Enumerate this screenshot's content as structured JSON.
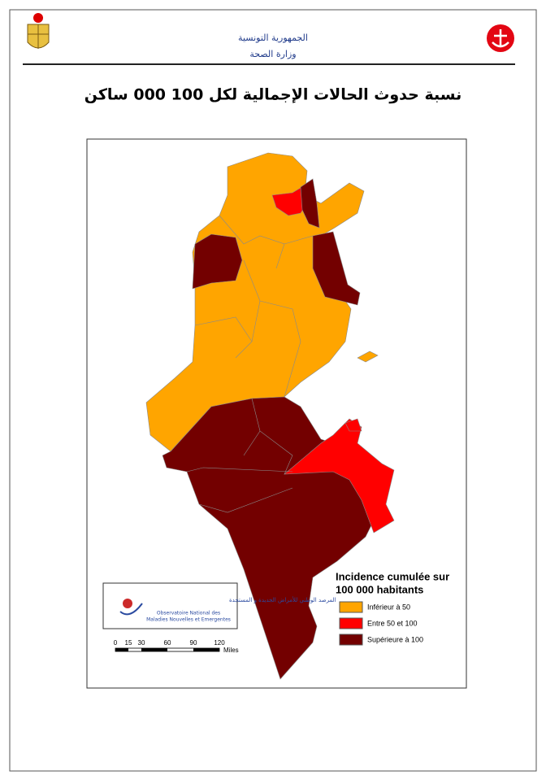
{
  "header": {
    "country": "الجمهورية التونسية",
    "ministry": "وزارة الصحة"
  },
  "title": "نسبة حدوث الحالات الإجمالية لكل 100 000 ساكن",
  "legend": {
    "title_lines": [
      "Incidence cumulée sur",
      "100 000 habitants"
    ],
    "items": [
      {
        "label": "Inférieur à 50",
        "color": "#ffa500"
      },
      {
        "label": "Entre 50 et 100",
        "color": "#ff0000"
      },
      {
        "label": "Supérieure à 100",
        "color": "#730000"
      }
    ]
  },
  "scale_bar": {
    "ticks": [
      0,
      15,
      30,
      60,
      90,
      120
    ],
    "unit": "Miles"
  },
  "logo": {
    "arabic": "المرصد الوطني للأمراض الجديدة و المستجدة",
    "french_lines": [
      "Observatoire National des",
      "Maladies Nouvelles et Emergentes"
    ]
  }
}
